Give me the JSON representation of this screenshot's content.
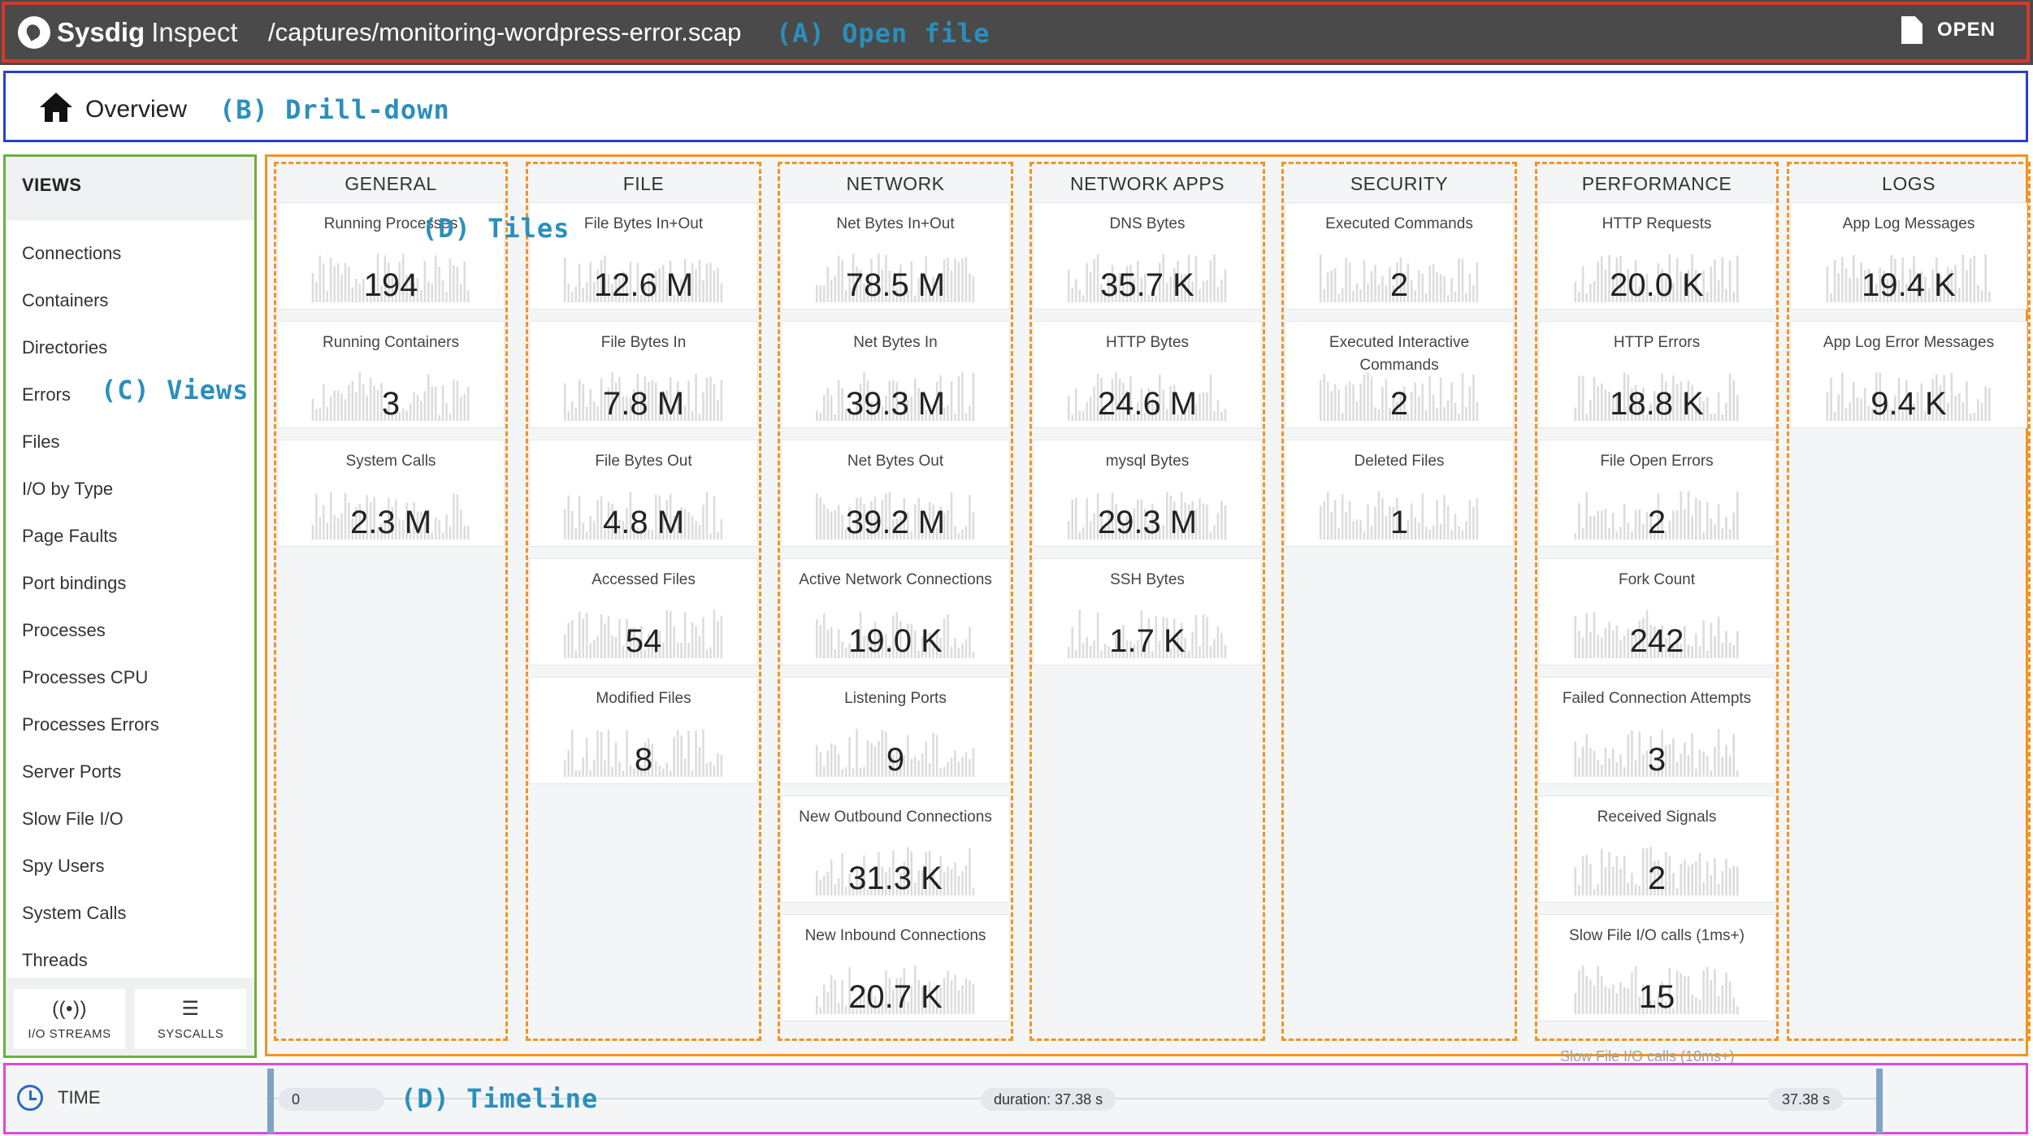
{
  "header": {
    "logo_bold": "Sysdig",
    "logo_light": "Inspect",
    "file_path": "/captures/monitoring-wordpress-error.scap",
    "open_label": "OPEN",
    "annotation": "(A) Open file"
  },
  "breadcrumb": {
    "label": "Overview",
    "annotation": "(B) Drill-down"
  },
  "sidebar": {
    "title": "VIEWS",
    "annotation": "(C) Views",
    "items": [
      "Connections",
      "Containers",
      "Directories",
      "Errors",
      "Files",
      "I/O by Type",
      "Page Faults",
      "Port bindings",
      "Processes",
      "Processes CPU",
      "Processes Errors",
      "Server Ports",
      "Slow File I/O",
      "Spy Users",
      "System Calls",
      "Threads"
    ],
    "buttons": [
      {
        "label": "I/O STREAMS",
        "icon": "broadcast-icon"
      },
      {
        "label": "SYSCALLS",
        "icon": "list-icon"
      }
    ]
  },
  "tiles_annotation": "(D) Tiles",
  "columns": [
    {
      "title": "GENERAL",
      "tiles": [
        {
          "title": "Running Processes",
          "value": "194"
        },
        {
          "title": "Running Containers",
          "value": "3"
        },
        {
          "title": "System Calls",
          "value": "2.3 M"
        }
      ]
    },
    {
      "title": "FILE",
      "tiles": [
        {
          "title": "File Bytes In+Out",
          "value": "12.6 M"
        },
        {
          "title": "File Bytes In",
          "value": "7.8 M"
        },
        {
          "title": "File Bytes Out",
          "value": "4.8 M"
        },
        {
          "title": "Accessed Files",
          "value": "54"
        },
        {
          "title": "Modified Files",
          "value": "8"
        }
      ]
    },
    {
      "title": "NETWORK",
      "tiles": [
        {
          "title": "Net Bytes In+Out",
          "value": "78.5 M"
        },
        {
          "title": "Net Bytes In",
          "value": "39.3 M"
        },
        {
          "title": "Net Bytes Out",
          "value": "39.2 M"
        },
        {
          "title": "Active Network Connections",
          "value": "19.0 K"
        },
        {
          "title": "Listening Ports",
          "value": "9"
        },
        {
          "title": "New Outbound Connections",
          "value": "31.3 K"
        },
        {
          "title": "New Inbound Connections",
          "value": "20.7 K"
        }
      ]
    },
    {
      "title": "NETWORK APPS",
      "tiles": [
        {
          "title": "DNS Bytes",
          "value": "35.7 K"
        },
        {
          "title": "HTTP Bytes",
          "value": "24.6 M"
        },
        {
          "title": "mysql Bytes",
          "value": "29.3 M"
        },
        {
          "title": "SSH Bytes",
          "value": "1.7 K"
        }
      ]
    },
    {
      "title": "SECURITY",
      "tiles": [
        {
          "title": "Executed Commands",
          "value": "2"
        },
        {
          "title": "Executed Interactive Commands",
          "value": "2"
        },
        {
          "title": "Deleted Files",
          "value": "1"
        }
      ]
    },
    {
      "title": "PERFORMANCE",
      "tiles": [
        {
          "title": "HTTP Requests",
          "value": "20.0 K"
        },
        {
          "title": "HTTP Errors",
          "value": "18.8 K"
        },
        {
          "title": "File Open Errors",
          "value": "2"
        },
        {
          "title": "Fork Count",
          "value": "242"
        },
        {
          "title": "Failed Connection Attempts",
          "value": "3"
        },
        {
          "title": "Received Signals",
          "value": "2"
        },
        {
          "title": "Slow File I/O calls (1ms+)",
          "value": "15"
        }
      ]
    },
    {
      "title": "LOGS",
      "tiles": [
        {
          "title": "App Log Messages",
          "value": "19.4 K"
        },
        {
          "title": "App Log Error Messages",
          "value": "9.4 K"
        }
      ]
    }
  ],
  "faded_next_tile": "Slow File I/O calls (10ms+)",
  "timeline": {
    "label": "TIME",
    "start": "0",
    "duration": "duration: 37.38 s",
    "end": "37.38 s",
    "annotation": "(D) Timeline"
  },
  "frame_colors": {
    "open_file": "#d33a2c",
    "drill_down": "#2b3fcb",
    "views": "#6ab23f",
    "tiles": "#f39322",
    "timeline": "#e048d8",
    "annotation_text": "#2a8fbd"
  }
}
